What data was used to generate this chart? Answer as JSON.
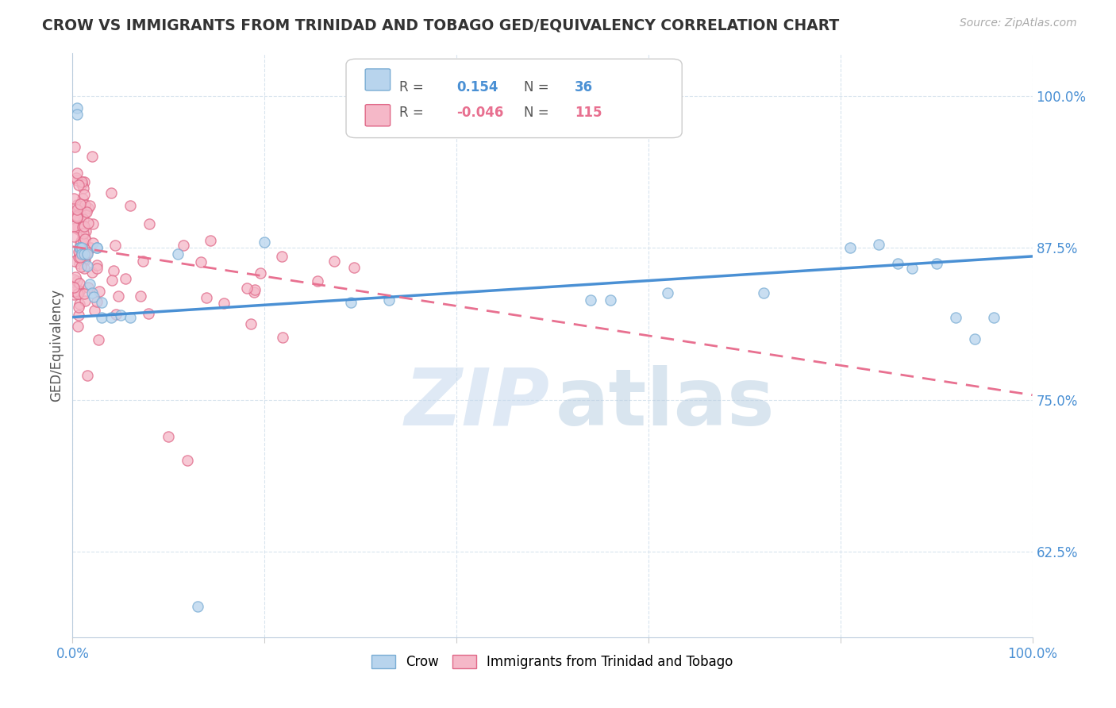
{
  "title": "CROW VS IMMIGRANTS FROM TRINIDAD AND TOBAGO GED/EQUIVALENCY CORRELATION CHART",
  "source_text": "Source: ZipAtlas.com",
  "ylabel": "GED/Equivalency",
  "xlim": [
    0.0,
    1.0
  ],
  "ylim": [
    0.555,
    1.035
  ],
  "yticks": [
    0.625,
    0.75,
    0.875,
    1.0
  ],
  "ytick_labels": [
    "62.5%",
    "75.0%",
    "87.5%",
    "100.0%"
  ],
  "xticks": [
    0.0,
    0.2,
    0.4,
    0.6,
    0.8,
    1.0
  ],
  "xtick_labels": [
    "0.0%",
    "",
    "",
    "",
    "",
    "100.0%"
  ],
  "crow_color": "#b8d4ed",
  "tt_color": "#f5b8c8",
  "crow_edge_color": "#7aadd4",
  "tt_edge_color": "#e06888",
  "blue_line_color": "#4a90d4",
  "pink_line_color": "#e87090",
  "grid_color": "#d8e4ee",
  "R_crow": 0.154,
  "N_crow": 36,
  "R_tt": -0.046,
  "N_tt": 115,
  "crow_label": "Crow",
  "tt_label": "Immigrants from Trinidad and Tobago",
  "blue_line_y0": 0.818,
  "blue_line_y1": 0.868,
  "pink_line_y0": 0.876,
  "pink_line_y1": 0.754
}
